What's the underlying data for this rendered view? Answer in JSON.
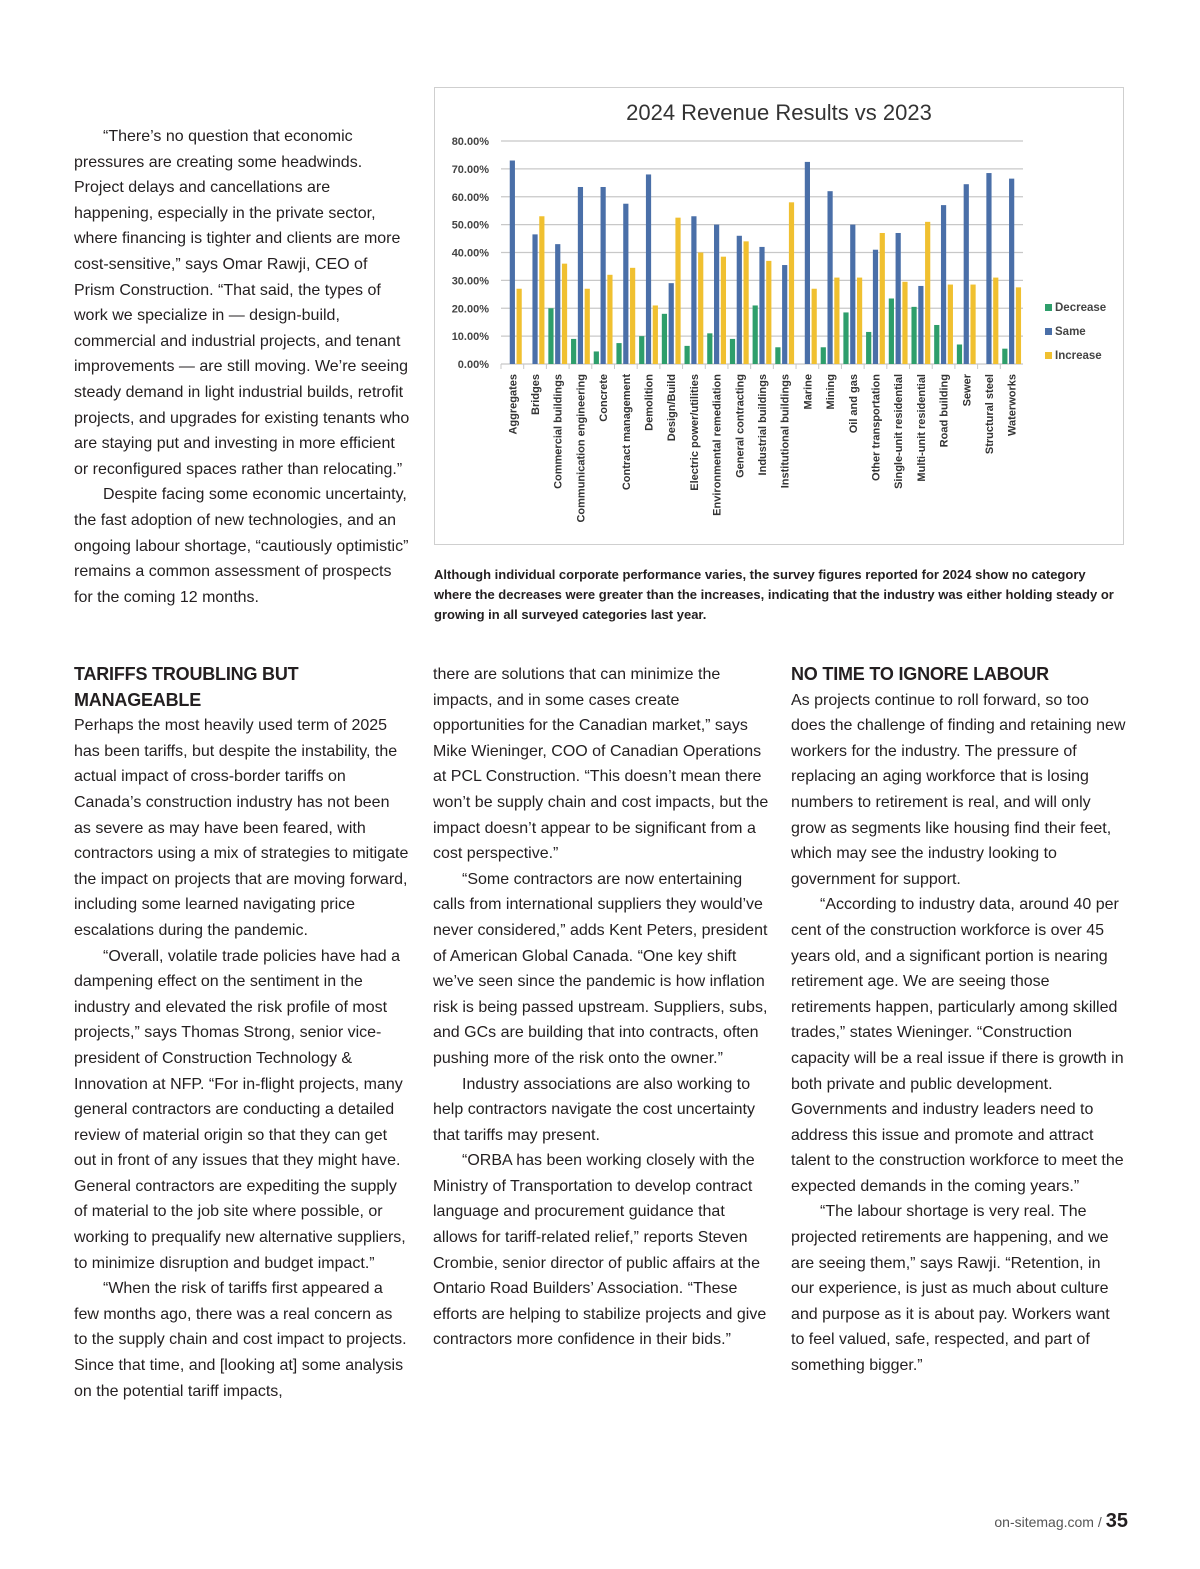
{
  "intro": {
    "paragraphs": [
      "“There’s no question that economic pressures are creating some headwinds. Project delays and cancellations are happening, especially in the private sector, where financing is tighter and clients are more cost-sensitive,” says Omar Rawji, CEO of Prism Construction. “That said, the types of work we specialize in — design-build, commercial and industrial projects, and tenant improvements — are still moving. We’re seeing steady demand in light industrial builds, retrofit projects, and upgrades for existing tenants who are staying put and investing in more efficient or reconfigured spaces rather than relocating.”",
      "Despite facing some economic uncertainty, the fast adoption of new technologies, and an ongoing labour shortage, “cautiously optimistic” remains a common assessment of prospects for the coming 12 months."
    ]
  },
  "caption": "Although individual corporate performance varies, the survey figures reported for 2024 show no category where the decreases were greater than the increases, indicating that the industry was either holding steady or growing in all surveyed categories last year.",
  "col1": {
    "heading": "TARIFFS TROUBLING BUT MANAGEABLE",
    "paragraphs": [
      "Perhaps the most heavily used term of 2025 has been tariffs, but despite the instability, the actual impact of cross-border tariffs on Canada’s construction industry has not been as severe as may have been feared, with contractors using a mix of strategies to mitigate the impact on projects that are moving forward, including some learned navigating price escalations during the pandemic.",
      "“Overall, volatile trade policies have had a dampening effect on the sentiment in the industry and elevated the risk profile of most projects,” says Thomas Strong, senior vice-president of Construction Technology & Innovation at NFP. “For in-flight projects, many general contractors are conducting a detailed review of material origin so that they can get out in front of any issues that they might have. General contractors are expediting the supply of material to the job site where possible, or working to prequalify new alternative suppliers, to minimize disruption and budget impact.”",
      "“When the risk of tariffs first appeared a few months ago, there was a real concern as to the supply chain and cost impact to projects. Since that time, and [looking at] some analysis on the potential tariff impacts,"
    ]
  },
  "col2": {
    "paragraphs": [
      "there are solutions that can minimize the impacts, and in some cases create opportunities for the Canadian market,” says Mike Wieninger, COO of Canadian Operations at PCL Construction. “This doesn’t mean there won’t be supply chain and cost impacts, but the impact doesn’t appear to be significant from a cost perspective.”",
      "“Some contractors are now entertaining calls from international suppliers they would’ve never considered,” adds Kent Peters, president of American Global Canada. “One key shift we’ve seen since the pandemic is how inflation risk is being passed upstream. Suppliers, subs, and GCs are building that into contracts, often pushing more of the risk onto the owner.”",
      "Industry associations are also working to help contractors navigate the cost uncertainty that tariffs may present.",
      "“ORBA has been working closely with the Ministry of Transportation to develop contract language and procurement guidance that allows for tariff-related relief,” reports Steven Crombie, senior director of public affairs at the Ontario Road Builders’ Association. “These efforts are helping to stabilize projects and give contractors more confidence in their bids.”"
    ]
  },
  "col3": {
    "heading": "NO TIME TO IGNORE LABOUR",
    "paragraphs": [
      "As projects continue to roll forward, so too does the challenge of finding and retaining new workers for the industry. The pressure of replacing an aging workforce that is losing numbers to retirement is real, and will only grow as segments like housing find their feet, which may see the industry looking to government for support.",
      "“According to industry data, around 40 per cent of the construction workforce is over 45 years old, and a significant portion is nearing retirement age. We are seeing those retirements happen, particularly among skilled trades,” states Wieninger. “Construction capacity will be a real issue if there is growth in both private and public development. Governments and industry leaders need to address this issue and promote and attract talent to the construction workforce to meet the expected demands in the coming years.”",
      "“The labour shortage is very real. The projected retirements are happening, and we are seeing them,” says Rawji. “Retention, in our experience, is just as much about culture and purpose as it is about pay. Workers want to feel valued, safe, respected, and part of something bigger.”"
    ]
  },
  "footer": {
    "site": "on-sitemag.com /",
    "page": "35"
  },
  "chart_data": {
    "type": "bar",
    "title": "2024 Revenue Results vs 2023",
    "xlabel": "",
    "ylabel": "",
    "ylim": [
      0,
      80
    ],
    "yticks": [
      "0.00%",
      "10.00%",
      "20.00%",
      "30.00%",
      "40.00%",
      "50.00%",
      "60.00%",
      "70.00%",
      "80.00%"
    ],
    "grid": true,
    "legend_position": "right",
    "categories": [
      "Aggregates",
      "Bridges",
      "Commercial buildings",
      "Communication engineering",
      "Concrete",
      "Contract management",
      "Demolition",
      "Design/Build",
      "Electric power/utilities",
      "Environmental remediation",
      "General contracting",
      "Industrial buildings",
      "Institutional buildings",
      "Marine",
      "Mining",
      "Oil and gas",
      "Other transportation",
      "Single-unit residential",
      "Multi-unit residential",
      "Road building",
      "Sewer",
      "Structural steel",
      "Waterworks"
    ],
    "series": [
      {
        "name": "Decrease",
        "color": "#2e9e6b",
        "values": [
          0,
          0,
          20,
          9,
          4.5,
          7.5,
          10,
          18,
          6.5,
          11,
          9,
          21,
          6,
          0,
          6,
          18.5,
          11.5,
          23.5,
          20.5,
          14,
          7,
          0,
          5.5
        ]
      },
      {
        "name": "Same",
        "color": "#4a6fa8",
        "values": [
          73,
          46.5,
          43,
          63.5,
          63.5,
          57.5,
          68,
          29,
          53,
          50,
          46,
          42,
          35.5,
          72.5,
          62,
          50,
          41,
          47,
          28,
          57,
          64.5,
          68.5,
          66.5
        ]
      },
      {
        "name": "Increase",
        "color": "#f0c030",
        "values": [
          27,
          53,
          36,
          27,
          32,
          34.5,
          21,
          52.5,
          40,
          38.5,
          44,
          37,
          58,
          27,
          31,
          31,
          47,
          29.5,
          51,
          28.5,
          28.5,
          31,
          27.5
        ]
      }
    ]
  }
}
